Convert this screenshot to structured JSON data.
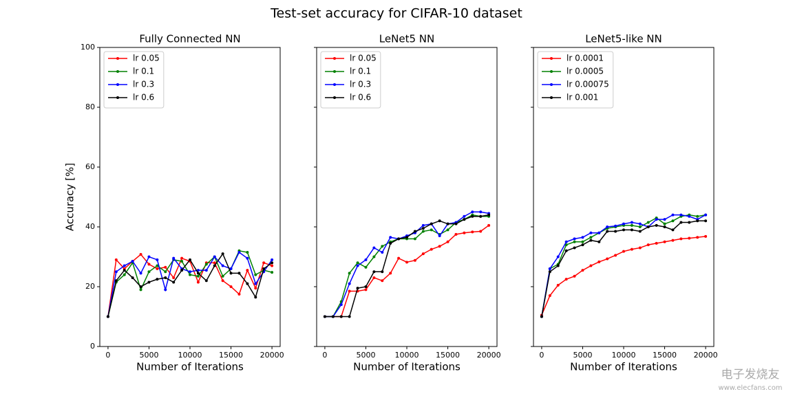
{
  "title": "Test-set accuracy for CIFAR-10 dataset",
  "sharey": true,
  "watermark": {
    "name": "电子发烧友",
    "url": "www.elecfans.com"
  },
  "chart_data": [
    {
      "type": "line",
      "title": "Fully Connected NN",
      "xlabel": "Number of Iterations",
      "ylabel": "Accuracy [%]",
      "x": [
        0,
        1000,
        2000,
        3000,
        4000,
        5000,
        6000,
        7000,
        8000,
        9000,
        10000,
        11000,
        12000,
        13000,
        14000,
        15000,
        16000,
        17000,
        18000,
        19000,
        20000
      ],
      "xlim": [
        -1000,
        21000
      ],
      "xticks": [
        0,
        5000,
        10000,
        15000,
        20000
      ],
      "ylim": [
        0,
        100
      ],
      "yticks": [
        0,
        20,
        40,
        60,
        80,
        100
      ],
      "legend": "upper left",
      "series": [
        {
          "name": "lr 0.05",
          "color": "#ff0000",
          "values": [
            10,
            29,
            26,
            28.5,
            30.8,
            27.5,
            26,
            26.5,
            23,
            29.5,
            28.5,
            21.5,
            28,
            28,
            22,
            20,
            17.5,
            25.5,
            19.5,
            28,
            27
          ]
        },
        {
          "name": "lr 0.1",
          "color": "#008000",
          "values": [
            10,
            21.5,
            24,
            28,
            19,
            25,
            27,
            25,
            29,
            28.5,
            24,
            23.5,
            27.5,
            30,
            23.5,
            26,
            32,
            31.5,
            24,
            25.5,
            24.8
          ]
        },
        {
          "name": "lr 0.3",
          "color": "#0000ff",
          "values": [
            10,
            25,
            27,
            28.5,
            24.5,
            30,
            29,
            19,
            29.5,
            26,
            25,
            25.5,
            25.5,
            30,
            27,
            26,
            31.5,
            29.5,
            21,
            25,
            29
          ]
        },
        {
          "name": "lr 0.6",
          "color": "#000000",
          "values": [
            10,
            22,
            25.5,
            23,
            20,
            21.5,
            22.5,
            23,
            21.5,
            25.5,
            29,
            24.5,
            22,
            27,
            31,
            24.5,
            24.5,
            21,
            16.5,
            26,
            28
          ]
        }
      ]
    },
    {
      "type": "line",
      "title": "LeNet5 NN",
      "xlabel": "Number of Iterations",
      "x": [
        0,
        1000,
        2000,
        3000,
        4000,
        5000,
        6000,
        7000,
        8000,
        9000,
        10000,
        11000,
        12000,
        13000,
        14000,
        15000,
        16000,
        17000,
        18000,
        19000,
        20000
      ],
      "xlim": [
        -1000,
        21000
      ],
      "xticks": [
        0,
        5000,
        10000,
        15000,
        20000
      ],
      "legend": "upper left",
      "series": [
        {
          "name": "lr 0.05",
          "color": "#ff0000",
          "values": [
            10,
            10,
            10,
            18.5,
            18.5,
            19,
            23,
            22,
            24.5,
            29.5,
            28.2,
            28.8,
            31,
            32.5,
            33.5,
            35,
            37.5,
            38,
            38.3,
            38.5,
            40.5
          ]
        },
        {
          "name": "lr 0.1",
          "color": "#008000",
          "values": [
            10,
            10,
            15,
            24.5,
            28,
            26.5,
            30,
            33.5,
            35,
            36,
            36,
            36,
            38.5,
            39,
            37.5,
            39,
            41.5,
            42.5,
            44,
            43.5,
            43.5
          ]
        },
        {
          "name": "lr 0.3",
          "color": "#0000ff",
          "values": [
            10,
            10,
            14,
            21,
            27,
            29,
            33,
            31.5,
            36.5,
            36,
            37,
            38,
            40.5,
            41,
            37,
            41,
            41.5,
            43.5,
            45,
            45,
            44.5
          ]
        },
        {
          "name": "lr 0.6",
          "color": "#000000",
          "values": [
            10,
            10,
            10,
            10,
            19.5,
            20,
            25,
            25,
            34.5,
            36,
            36.5,
            38.5,
            39.5,
            41,
            42,
            41,
            41,
            42.5,
            43.5,
            43.5,
            44
          ]
        }
      ]
    },
    {
      "type": "line",
      "title": "LeNet5-like NN",
      "xlabel": "Number of Iterations",
      "x": [
        0,
        1000,
        2000,
        3000,
        4000,
        5000,
        6000,
        7000,
        8000,
        9000,
        10000,
        11000,
        12000,
        13000,
        14000,
        15000,
        16000,
        17000,
        18000,
        19000,
        20000
      ],
      "xlim": [
        -1000,
        21000
      ],
      "xticks": [
        0,
        5000,
        10000,
        15000,
        20000
      ],
      "legend": "upper left",
      "series": [
        {
          "name": "lr 0.0001",
          "color": "#ff0000",
          "values": [
            10.5,
            17,
            20.5,
            22.5,
            23.5,
            25.5,
            27,
            28.3,
            29.3,
            30.5,
            31.8,
            32.5,
            33,
            34,
            34.5,
            35,
            35.5,
            36,
            36.2,
            36.5,
            36.8
          ]
        },
        {
          "name": "lr 0.0005",
          "color": "#008000",
          "values": [
            10,
            26,
            27.5,
            34,
            35,
            35,
            36.5,
            38,
            39.5,
            40,
            40.5,
            40.5,
            40,
            41.5,
            43,
            41,
            42,
            43.5,
            44,
            43.5,
            44
          ]
        },
        {
          "name": "lr 0.00075",
          "color": "#0000ff",
          "values": [
            10,
            26,
            30,
            35,
            36,
            36.5,
            38,
            38,
            40,
            40.3,
            41,
            41.5,
            41,
            40,
            42.5,
            42.5,
            44,
            44,
            43.5,
            42.5,
            44
          ]
        },
        {
          "name": "lr 0.001",
          "color": "#000000",
          "values": [
            10,
            25,
            27,
            32,
            33,
            34,
            35.5,
            35,
            38.5,
            38.5,
            39,
            39,
            38.5,
            40,
            40.5,
            40,
            39,
            41.5,
            41.5,
            42,
            42
          ]
        }
      ]
    }
  ]
}
